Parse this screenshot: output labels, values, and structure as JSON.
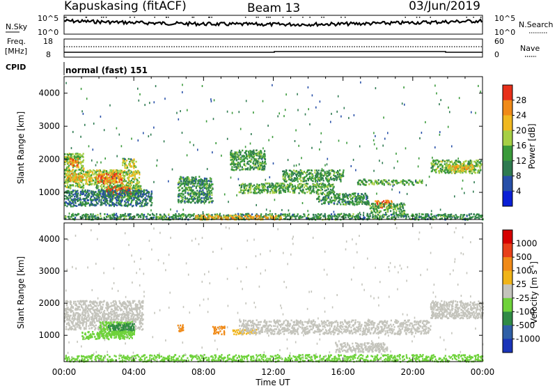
{
  "header": {
    "station": "Kapuskasing (fitACF)",
    "beam": "Beam 13",
    "date": "03/Jun/2019"
  },
  "noise_panel": {
    "left_label": "N.Sky",
    "left_ticks": [
      "10^5",
      "10^0"
    ],
    "right_label": "N.Search",
    "right_ticks": [
      "10^5",
      "10^0"
    ]
  },
  "freq_panel": {
    "left_label_1": "Freq.",
    "left_label_2": "[MHz]",
    "left_ticks": [
      "18",
      "8"
    ],
    "right_label": "Nave",
    "right_ticks": [
      "60",
      "0"
    ]
  },
  "cpid": {
    "label": "CPID",
    "value": "normal (fast) 151"
  },
  "power_panel": {
    "ylabel": "Slant Range [km]",
    "yticks": [
      "4000",
      "3000",
      "2000",
      "1000"
    ],
    "colorbar_label": "Power [dB]",
    "colorbar_ticks": [
      "28",
      "24",
      "20",
      "16",
      "12",
      "8",
      "4"
    ]
  },
  "velocity_panel": {
    "ylabel": "Slant Range [km]",
    "yticks": [
      "4000",
      "3000",
      "2000",
      "1000"
    ],
    "colorbar_label": "Velocity [m s",
    "colorbar_label_sup": "-1",
    "colorbar_label_end": "]",
    "colorbar_ticks": [
      "1000",
      "500",
      "100",
      "25",
      "-25",
      "-100",
      "-500",
      "-1000"
    ]
  },
  "xaxis": {
    "label": "Time UT",
    "ticks": [
      "00:00",
      "04:00",
      "08:00",
      "12:00",
      "16:00",
      "20:00",
      "00:00"
    ]
  },
  "colors": {
    "power_scale": [
      "#0a1fd6",
      "#274fa8",
      "#2e7a50",
      "#3a9a3a",
      "#a6cf45",
      "#f0b820",
      "#f08a18",
      "#e8301a",
      "#cc0000"
    ],
    "velocity_scale": [
      "#1a34b8",
      "#2f5fa6",
      "#2f8a45",
      "#6ed23a",
      "#c4c4bc",
      "#f0b418",
      "#f08a18",
      "#e8401a",
      "#d60000"
    ]
  },
  "chart_data": [
    {
      "type": "heatmap",
      "panel": "power",
      "x_unit": "hours UT",
      "xlim": [
        0,
        24
      ],
      "ylim": [
        180,
        4500
      ],
      "zlim": [
        0,
        30
      ],
      "z_unit": "dB",
      "colorbar_ticks": [
        28,
        24,
        20,
        16,
        12,
        8,
        4
      ],
      "regions": [
        {
          "x": [
            0.0,
            1.1
          ],
          "y": [
            1150,
            2200
          ],
          "z": 14
        },
        {
          "x": [
            0.3,
            0.8
          ],
          "y": [
            1800,
            2050
          ],
          "z": 22
        },
        {
          "x": [
            0.1,
            1.5
          ],
          "y": [
            1350,
            1600
          ],
          "z": 19
        },
        {
          "x": [
            1.2,
            4.3
          ],
          "y": [
            1250,
            1700
          ],
          "z": 15
        },
        {
          "x": [
            1.8,
            3.3
          ],
          "y": [
            1300,
            1600
          ],
          "z": 22
        },
        {
          "x": [
            3.3,
            4.1
          ],
          "y": [
            1750,
            2050
          ],
          "z": 15
        },
        {
          "x": [
            1.8,
            4.4
          ],
          "y": [
            850,
            1250
          ],
          "z": 13
        },
        {
          "x": [
            2.4,
            3.8
          ],
          "y": [
            950,
            1200
          ],
          "z": 23
        },
        {
          "x": [
            0.0,
            5.0
          ],
          "y": [
            600,
            1100
          ],
          "z": 8
        },
        {
          "x": [
            6.5,
            8.5
          ],
          "y": [
            700,
            1500
          ],
          "z": 10
        },
        {
          "x": [
            9.5,
            11.5
          ],
          "y": [
            1700,
            2300
          ],
          "z": 11
        },
        {
          "x": [
            10.0,
            15.5
          ],
          "y": [
            1000,
            1300
          ],
          "z": 12
        },
        {
          "x": [
            12.5,
            16.0
          ],
          "y": [
            1350,
            1700
          ],
          "z": 11
        },
        {
          "x": [
            14.5,
            17.5
          ],
          "y": [
            650,
            1000
          ],
          "z": 10
        },
        {
          "x": [
            16.8,
            20.5
          ],
          "y": [
            1250,
            1400
          ],
          "z": 12
        },
        {
          "x": [
            17.8,
            18.8
          ],
          "y": [
            550,
            780
          ],
          "z": 21
        },
        {
          "x": [
            17.5,
            19.5
          ],
          "y": [
            400,
            700
          ],
          "z": 11
        },
        {
          "x": [
            21.0,
            23.9
          ],
          "y": [
            1600,
            2000
          ],
          "z": 13
        },
        {
          "x": [
            22.0,
            23.5
          ],
          "y": [
            1650,
            1850
          ],
          "z": 18
        },
        {
          "x": [
            0.0,
            24.0
          ],
          "y": [
            200,
            380
          ],
          "z": 10
        },
        {
          "x": [
            7.5,
            12.5
          ],
          "y": [
            200,
            330
          ],
          "z": 19
        },
        {
          "x": [
            0.0,
            24.0
          ],
          "y": [
            200,
            4400
          ],
          "z": 9
        }
      ]
    },
    {
      "type": "heatmap",
      "panel": "velocity",
      "x_unit": "hours UT",
      "xlim": [
        0,
        24
      ],
      "ylim": [
        180,
        4500
      ],
      "zlim": [
        -1000,
        1000
      ],
      "z_unit": "m s-1",
      "colorbar_ticks": [
        1000,
        500,
        100,
        25,
        -25,
        -100,
        -500,
        -1000
      ],
      "regions": [
        {
          "x": [
            0.0,
            4.5
          ],
          "y": [
            1200,
            2100
          ],
          "z": 0
        },
        {
          "x": [
            2.0,
            4.0
          ],
          "y": [
            1000,
            1450
          ],
          "z": 60
        },
        {
          "x": [
            2.5,
            4.0
          ],
          "y": [
            1150,
            1400
          ],
          "z": 300
        },
        {
          "x": [
            1.0,
            4.0
          ],
          "y": [
            900,
            1150
          ],
          "z": 60
        },
        {
          "x": [
            6.4,
            6.8
          ],
          "y": [
            1150,
            1350
          ],
          "z": -150
        },
        {
          "x": [
            8.5,
            9.2
          ],
          "y": [
            1050,
            1300
          ],
          "z": -300
        },
        {
          "x": [
            9.5,
            11.0
          ],
          "y": [
            1050,
            1200
          ],
          "z": -60
        },
        {
          "x": [
            10.0,
            21.0
          ],
          "y": [
            1050,
            1500
          ],
          "z": 0
        },
        {
          "x": [
            15.5,
            18.5
          ],
          "y": [
            500,
            800
          ],
          "z": 0
        },
        {
          "x": [
            21.0,
            24.0
          ],
          "y": [
            1550,
            2100
          ],
          "z": 0
        },
        {
          "x": [
            0.0,
            24.0
          ],
          "y": [
            200,
            420
          ],
          "z": 70
        },
        {
          "x": [
            0.0,
            24.0
          ],
          "y": [
            200,
            4400
          ],
          "z": 0
        }
      ]
    }
  ]
}
